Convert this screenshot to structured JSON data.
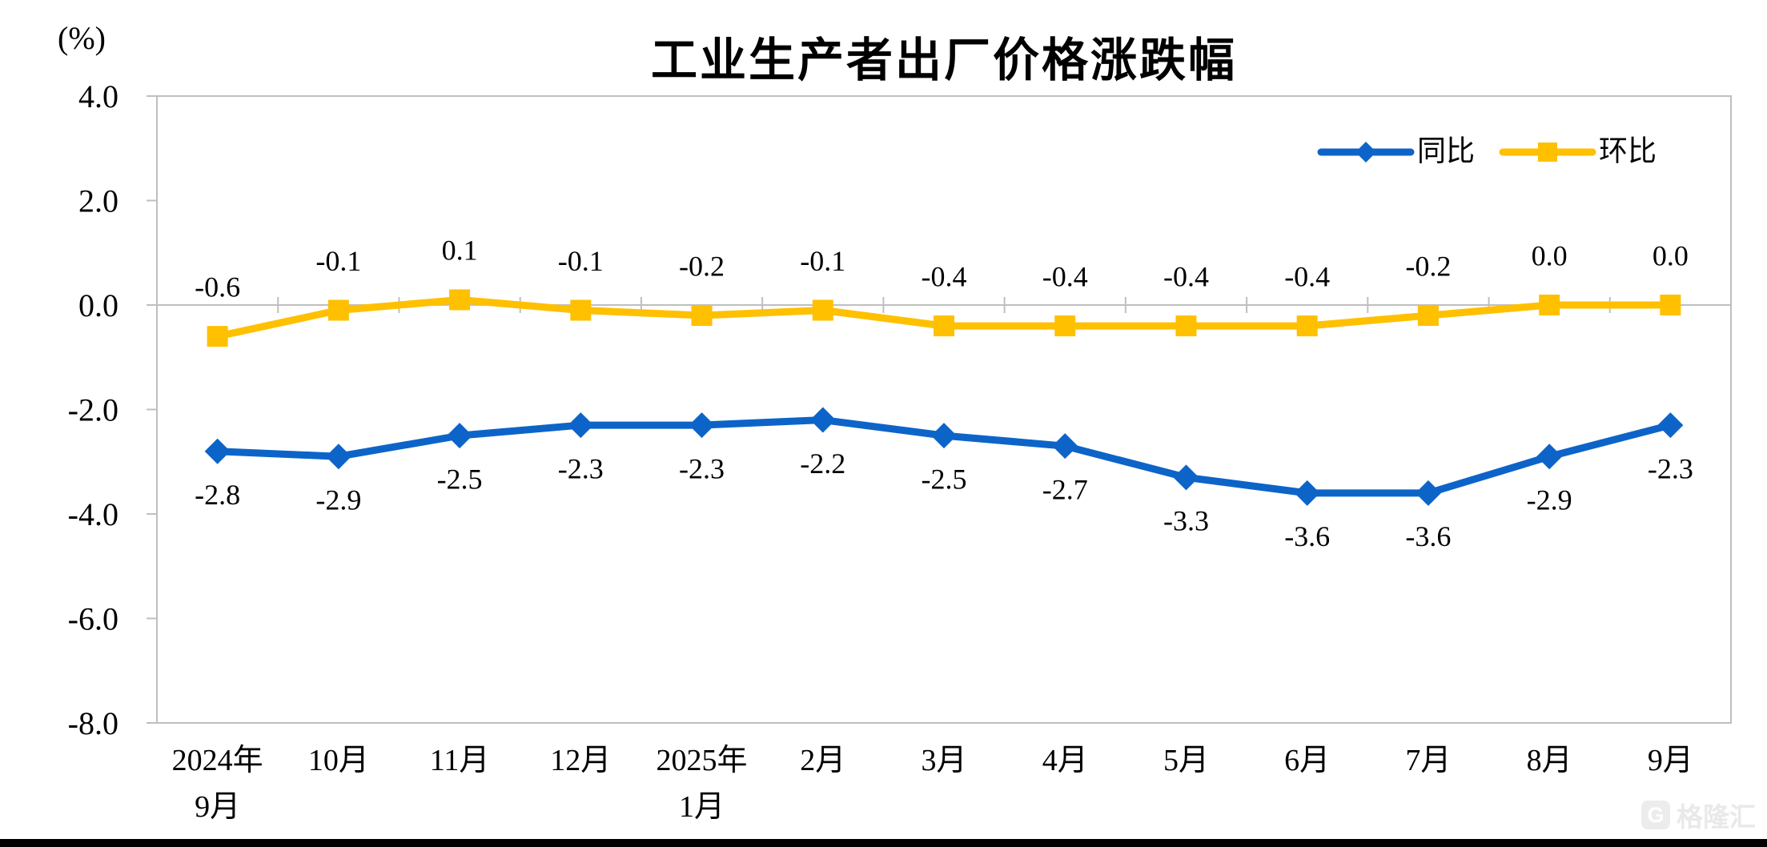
{
  "title": "工业生产者出厂价格涨跌幅",
  "watermark": {
    "logo_letter": "G",
    "text": "格隆汇"
  },
  "chart_data": {
    "type": "line",
    "title": "工业生产者出厂价格涨跌幅",
    "ylabel": "(%)",
    "ylim": [
      -8.0,
      4.0
    ],
    "ytick_step": 2.0,
    "grid": false,
    "legend_position": "top-right",
    "categories": [
      "2024年\n9月",
      "10月",
      "11月",
      "12月",
      "2025年\n1月",
      "2月",
      "3月",
      "4月",
      "5月",
      "6月",
      "7月",
      "8月",
      "9月"
    ],
    "series": [
      {
        "id": "yoy",
        "name": "同比",
        "color": "#0d64c8",
        "marker": "diamond",
        "label_position": "below",
        "values": [
          -2.8,
          -2.9,
          -2.5,
          -2.3,
          -2.3,
          -2.2,
          -2.5,
          -2.7,
          -3.3,
          -3.6,
          -3.6,
          -2.9,
          -2.3
        ]
      },
      {
        "id": "mom",
        "name": "环比",
        "color": "#ffc000",
        "marker": "square",
        "label_position": "above",
        "values": [
          -0.6,
          -0.1,
          0.1,
          -0.1,
          -0.2,
          -0.1,
          -0.4,
          -0.4,
          -0.4,
          -0.4,
          -0.2,
          0.0,
          0.0
        ]
      }
    ],
    "axis_color": "#bfbfbf",
    "label_color": "#000000"
  }
}
